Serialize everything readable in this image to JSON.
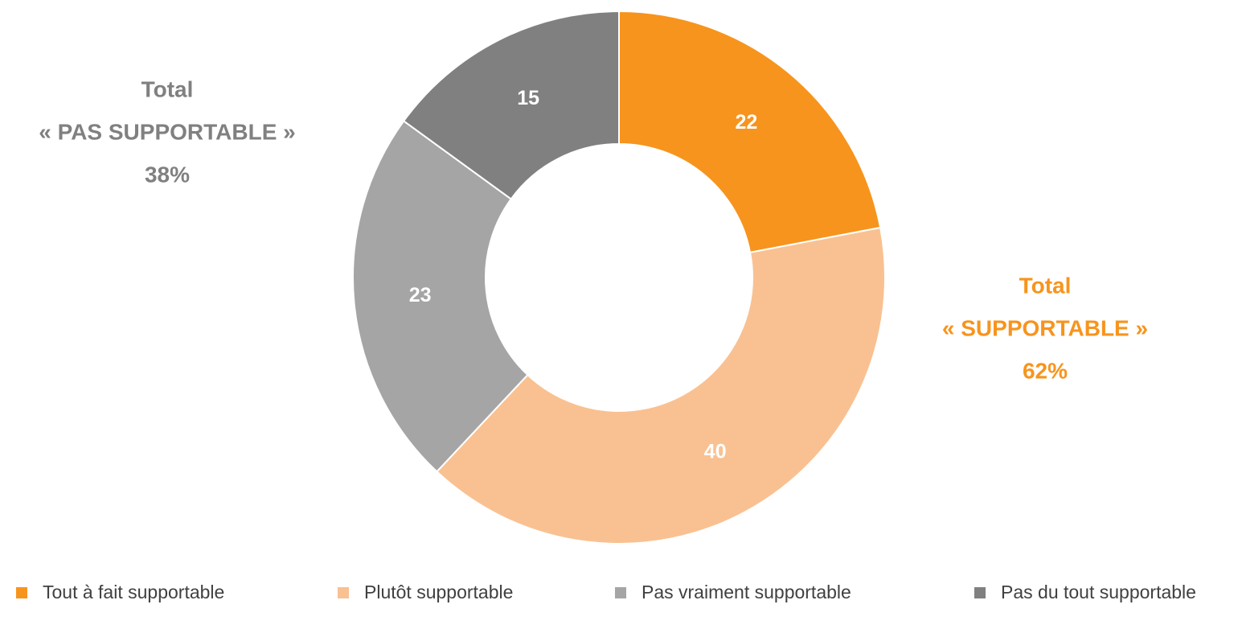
{
  "chart_data": {
    "type": "pie",
    "donut": true,
    "categories": [
      "Tout à fait supportable",
      "Plutôt supportable",
      "Pas vraiment supportable",
      "Pas du tout supportable"
    ],
    "values": [
      22,
      40,
      23,
      15
    ],
    "colors": [
      "#f7941d",
      "#f9c191",
      "#a5a5a5",
      "#808080"
    ],
    "legend": "bottom",
    "annotations": [
      {
        "lines": [
          "Total",
          "« PAS SUPPORTABLE »",
          "38%"
        ],
        "color": "#808080"
      },
      {
        "lines": [
          "Total",
          "« SUPPORTABLE »",
          "62%"
        ],
        "color": "#f7941d"
      }
    ]
  }
}
